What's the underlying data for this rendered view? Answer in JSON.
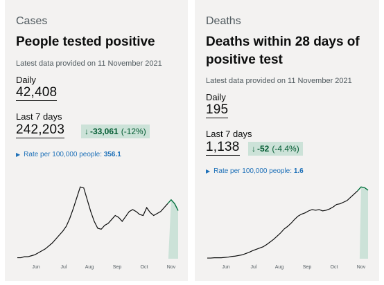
{
  "cases": {
    "category": "Cases",
    "title": "People tested positive",
    "latest": "Latest data provided on 11 November 2021",
    "daily_label": "Daily",
    "daily_value": "42,408",
    "week_label": "Last 7 days",
    "week_value": "242,203",
    "change_arrow": "↓",
    "change_value": "-33,061",
    "change_pct": "(-12%)",
    "rate_label": "Rate per 100,000 people:",
    "rate_value": "356.1"
  },
  "deaths": {
    "category": "Deaths",
    "title_line1": "Deaths within 28 days of",
    "title_line2": "positive test",
    "latest": "Latest data provided on 11 November 2021",
    "daily_label": "Daily",
    "daily_value": "195",
    "week_label": "Last 7 days",
    "week_value": "1,138",
    "change_arrow": "↓",
    "change_value": "-52",
    "change_pct": "(-4.4%)",
    "rate_label": "Rate per 100,000 people:",
    "rate_value": "1.6"
  },
  "colors": {
    "line": "#0b0c0c",
    "recent_line": "#00703c",
    "recent_fill": "#cce2d8",
    "link": "#1d70b8",
    "change_bg": "#cce2d8",
    "change_text": "#005a30"
  },
  "chart_data": [
    {
      "type": "line",
      "x_tick_labels": [
        "Jun",
        "Jul",
        "Aug",
        "Sep",
        "Oct",
        "Nov"
      ],
      "x": [
        0,
        5,
        10,
        15,
        20,
        25,
        30,
        35,
        40,
        45,
        50,
        55,
        60,
        65,
        70,
        75,
        80,
        85,
        90,
        95,
        100,
        105,
        110,
        115,
        120,
        125,
        130,
        135,
        140,
        145,
        150,
        155,
        160,
        165,
        170,
        175,
        180,
        185,
        190,
        195,
        200,
        205,
        210,
        215,
        220,
        225,
        230
      ],
      "values": [
        1,
        1,
        2,
        2,
        3,
        4,
        6,
        8,
        10,
        13,
        16,
        20,
        24,
        28,
        33,
        41,
        51,
        62,
        73,
        72,
        60,
        48,
        38,
        31,
        30,
        34,
        36,
        40,
        44,
        42,
        38,
        43,
        48,
        50,
        48,
        45,
        44,
        52,
        47,
        44,
        46,
        48,
        52,
        56,
        60,
        56,
        49
      ],
      "highlight_from_x": 216
    },
    {
      "type": "line",
      "x_tick_labels": [
        "Jun",
        "Jul",
        "Aug",
        "Sep",
        "Oct",
        "Nov"
      ],
      "x": [
        0,
        5,
        10,
        15,
        20,
        25,
        30,
        35,
        40,
        45,
        50,
        55,
        60,
        65,
        70,
        75,
        80,
        85,
        90,
        95,
        100,
        105,
        110,
        115,
        120,
        125,
        130,
        135,
        140,
        145,
        150,
        155,
        160,
        165,
        170,
        175,
        180,
        185,
        190,
        195,
        200,
        205,
        210,
        215,
        220,
        225,
        230
      ],
      "values": [
        2,
        2,
        3,
        3,
        3,
        4,
        5,
        7,
        8,
        10,
        12,
        16,
        20,
        25,
        29,
        33,
        37,
        44,
        52,
        60,
        70,
        80,
        92,
        100,
        110,
        122,
        132,
        138,
        142,
        148,
        152,
        150,
        152,
        148,
        150,
        154,
        160,
        168,
        170,
        175,
        180,
        190,
        200,
        210,
        222,
        220,
        212
      ],
      "highlight_from_x": 218
    }
  ]
}
